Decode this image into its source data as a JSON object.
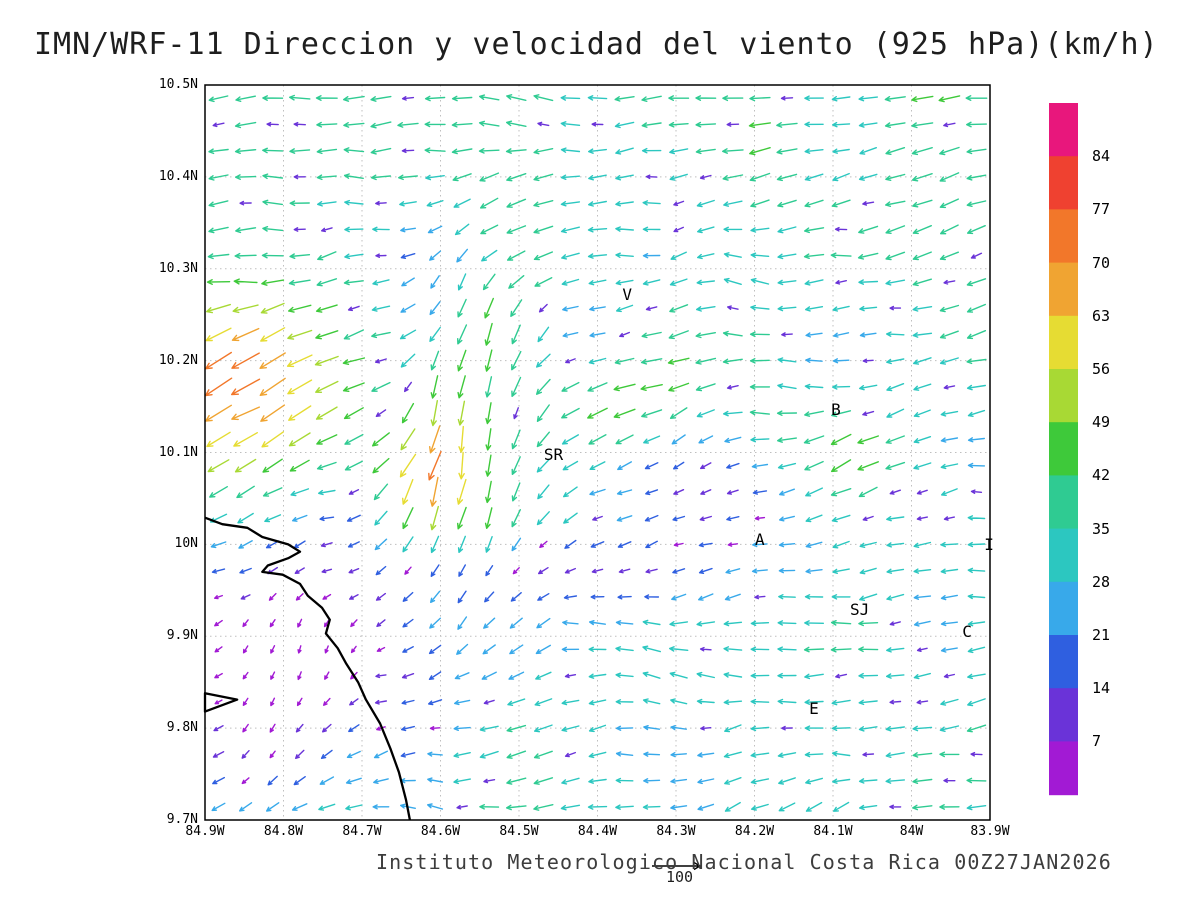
{
  "title": "IMN/WRF-11 Direccion y velocidad del viento (925 hPa)(km/h)",
  "footer": {
    "credit": "Instituto Meteorologico Nacional Costa Rica 00Z27JAN2026",
    "reference_vector": {
      "label": "100",
      "speed": 100
    }
  },
  "chart_data": {
    "type": "vector-field",
    "title": "IMN/WRF-11 Direccion y velocidad del viento (925 hPa)(km/h)",
    "units": "km/h",
    "level": "925 hPa",
    "x_axis": {
      "range": [
        -84.9,
        -83.9
      ],
      "tick_values": [
        -84.9,
        -84.8,
        -84.7,
        -84.6,
        -84.5,
        -84.4,
        -84.3,
        -84.2,
        -84.1,
        -84.0,
        -83.9
      ],
      "tick_labels": [
        "84.9W",
        "84.8W",
        "84.7W",
        "84.6W",
        "84.5W",
        "84.4W",
        "84.3W",
        "84.2W",
        "84.1W",
        "84W",
        "83.9W"
      ]
    },
    "y_axis": {
      "range": [
        9.7,
        10.5
      ],
      "tick_values": [
        10.5,
        10.4,
        10.3,
        10.2,
        10.1,
        10.0,
        9.9,
        9.8,
        9.7
      ],
      "tick_labels": [
        "10.5N",
        "10.4N",
        "10.3N",
        "10.2N",
        "10.1N",
        "10N",
        "9.9N",
        "9.8N",
        "9.7N"
      ]
    },
    "grid": {
      "style": "dotted",
      "color": "#bfbfbf"
    },
    "colorbar": {
      "boundary_labels": [
        84,
        77,
        70,
        63,
        56,
        49,
        42,
        35,
        28,
        21,
        14,
        7
      ],
      "colors_top_to_bottom": [
        "#e8177c",
        "#ef4130",
        "#f2772a",
        "#f0a432",
        "#e6dc33",
        "#a8d934",
        "#3ec93a",
        "#2fcb92",
        "#2cc7c0",
        "#38a9ea",
        "#2f5fe0",
        "#6a33d8",
        "#a21ad4"
      ]
    },
    "stations": [
      {
        "label": "V",
        "lon": -84.362,
        "lat": 10.27
      },
      {
        "label": "B",
        "lon": -84.096,
        "lat": 10.145
      },
      {
        "label": "SR",
        "lon": -84.462,
        "lat": 10.096
      },
      {
        "label": "A",
        "lon": -84.193,
        "lat": 10.004
      },
      {
        "label": "SJ",
        "lon": -84.072,
        "lat": 9.928
      },
      {
        "label": "C",
        "lon": -83.929,
        "lat": 9.903
      },
      {
        "label": "E",
        "lon": -84.124,
        "lat": 9.82
      },
      {
        "label": "I",
        "lon": -83.901,
        "lat": 9.998
      }
    ],
    "coastline_lonlat": [
      [
        -84.9,
        10.029
      ],
      [
        -84.878,
        10.022
      ],
      [
        -84.846,
        10.018
      ],
      [
        -84.827,
        10.008
      ],
      [
        -84.794,
        10.0
      ],
      [
        -84.779,
        9.992
      ],
      [
        -84.794,
        9.985
      ],
      [
        -84.82,
        9.977
      ],
      [
        -84.827,
        9.97
      ],
      [
        -84.801,
        9.967
      ],
      [
        -84.779,
        9.957
      ],
      [
        -84.769,
        9.944
      ],
      [
        -84.751,
        9.931
      ],
      [
        -84.741,
        9.918
      ],
      [
        -84.746,
        9.903
      ],
      [
        -84.731,
        9.887
      ],
      [
        -84.72,
        9.87
      ],
      [
        -84.705,
        9.85
      ],
      [
        -84.695,
        9.831
      ],
      [
        -84.677,
        9.805
      ],
      [
        -84.664,
        9.778
      ],
      [
        -84.653,
        9.752
      ],
      [
        -84.644,
        9.722
      ],
      [
        -84.639,
        9.7
      ]
    ],
    "island_lonlat": [
      [
        -84.9,
        9.838
      ],
      [
        -84.859,
        9.831
      ],
      [
        -84.9,
        9.818
      ]
    ],
    "wind_field": {
      "grid_cols": 29,
      "grid_rows": 28,
      "base_flow": {
        "u": -30,
        "v": -4
      },
      "features": [
        {
          "name": "fast-top-band",
          "type": "add",
          "center": [
            -84.4,
            10.55
          ],
          "sigma": [
            0.9,
            0.18
          ],
          "du": -10,
          "dv": 0
        },
        {
          "name": "ne-jet-upper-left",
          "type": "add",
          "center": [
            -84.88,
            10.17
          ],
          "sigma": [
            0.14,
            0.11
          ],
          "du": -36,
          "dv": -30
        },
        {
          "name": "southward-branch",
          "type": "add",
          "center": [
            -84.56,
            10.13
          ],
          "sigma": [
            0.09,
            0.2
          ],
          "du": 26,
          "dv": -42
        },
        {
          "name": "orange-streak",
          "type": "add",
          "center": [
            -84.62,
            10.06
          ],
          "sigma": [
            0.05,
            0.08
          ],
          "du": -6,
          "dv": -30
        },
        {
          "name": "yellow-patch-center",
          "type": "add",
          "center": [
            -84.37,
            10.15
          ],
          "sigma": [
            0.08,
            0.05
          ],
          "du": -20,
          "dv": -14
        },
        {
          "name": "b-station-boost",
          "type": "add",
          "center": [
            -84.08,
            10.1
          ],
          "sigma": [
            0.07,
            0.07
          ],
          "du": -14,
          "dv": -12
        },
        {
          "name": "sw-turn-lower-left",
          "type": "add",
          "center": [
            -84.8,
            9.87
          ],
          "sigma": [
            0.15,
            0.12
          ],
          "du": 22,
          "dv": -9
        },
        {
          "name": "calm-lower-left",
          "type": "damp",
          "center": [
            -84.8,
            9.88
          ],
          "sigma": [
            0.16,
            0.13
          ],
          "factor": 0.78
        },
        {
          "name": "calm-mid-band",
          "type": "damp",
          "center": [
            -84.45,
            9.97
          ],
          "sigma": [
            0.2,
            0.04
          ],
          "factor": 0.65
        },
        {
          "name": "calm-mid-right",
          "type": "damp",
          "center": [
            -84.26,
            10.06
          ],
          "sigma": [
            0.1,
            0.05
          ],
          "factor": 0.6
        }
      ],
      "noise": {
        "u_amp": 8,
        "v_amp": 10,
        "dir_jitter": 0.22
      },
      "speckle": {
        "probability": 0.1,
        "damp": 0.32,
        "max_speed": 45
      }
    }
  }
}
